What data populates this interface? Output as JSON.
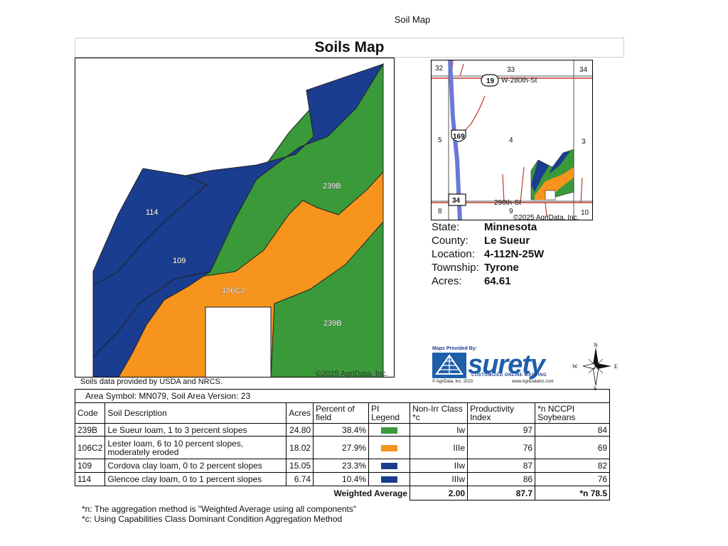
{
  "page_label": "Soil Map",
  "title": "Soils Map",
  "main_map": {
    "labels": [
      "114",
      "109",
      "239B",
      "106C2",
      "239B"
    ],
    "copyright": "©2025 AgriData, Inc.",
    "credit": "Soils data provided by USDA and NRCS.",
    "colors": {
      "239B": "#3a9a3a",
      "106C2": "#f7941d",
      "109": "#1a3d8f",
      "114": "#1a3d8f"
    }
  },
  "locator_map": {
    "sections": [
      "32",
      "33",
      "34",
      "5",
      "4",
      "3",
      "8",
      "9",
      "10"
    ],
    "road_north": "W-280th-St",
    "road_south": "290th-St",
    "route_19": "19",
    "route_169": "169",
    "route_34": "34",
    "copyright": "©2025 AgriData, Inc."
  },
  "info": [
    {
      "key": "State:",
      "value": "Minnesota"
    },
    {
      "key": "County:",
      "value": "Le Sueur"
    },
    {
      "key": "Location:",
      "value": "4-112N-25W"
    },
    {
      "key": "Township:",
      "value": "Tyrone"
    },
    {
      "key": "Acres:",
      "value": "64.61"
    }
  ],
  "logo": {
    "provided_by": "Maps Provided By:",
    "brand": "surety",
    "tagline": "CUSTOMIZED ONLINE MAPPING",
    "footer_left": "© AgriData, Inc. 2023",
    "footer_right": "www.AgriDataInc.com"
  },
  "compass": {
    "n": "N",
    "s": "S",
    "e": "E",
    "w": "W"
  },
  "table": {
    "area_symbol": "Area Symbol: MN079, Soil Area Version: 23",
    "headers": {
      "code": "Code",
      "desc": "Soil Description",
      "acres": "Acres",
      "pct_1": "Percent of",
      "pct_2": "field",
      "legend_1": "PI",
      "legend_2": "Legend",
      "class_1": "Non-Irr Class",
      "class_2": "*c",
      "prod_1": "Productivity",
      "prod_2": "Index",
      "nccpi_1": "*n NCCPI",
      "nccpi_2": "Soybeans"
    },
    "rows": [
      {
        "code": "239B",
        "desc_1": "Le Sueur loam, 1 to 3 percent slopes",
        "desc_2": "",
        "acres": "24.80",
        "pct": "38.4%",
        "color": "#3a9a3a",
        "class": "Iw",
        "pi": "97",
        "nccpi": "84"
      },
      {
        "code": "106C2",
        "desc_1": "Lester loam, 6 to 10 percent slopes,",
        "desc_2": "moderately eroded",
        "acres": "18.02",
        "pct": "27.9%",
        "color": "#f7941d",
        "class": "IIIe",
        "pi": "76",
        "nccpi": "69"
      },
      {
        "code": "109",
        "desc_1": "Cordova clay loam, 0 to 2 percent slopes",
        "desc_2": "",
        "acres": "15.05",
        "pct": "23.3%",
        "color": "#1a3d8f",
        "class": "IIw",
        "pi": "87",
        "nccpi": "82"
      },
      {
        "code": "114",
        "desc_1": "Glencoe clay loam, 0 to 1 percent slopes",
        "desc_2": "",
        "acres": "6.74",
        "pct": "10.4%",
        "color": "#1a3d8f",
        "class": "IIIw",
        "pi": "86",
        "nccpi": "76"
      }
    ],
    "weighted": {
      "label": "Weighted Average",
      "class": "2.00",
      "pi": "87.7",
      "nccpi": "*n 78.5"
    }
  },
  "footnotes": [
    "*n: The aggregation method is \"Weighted Average using all components\"",
    "*c: Using Capabilities Class Dominant Condition Aggregation Method"
  ]
}
